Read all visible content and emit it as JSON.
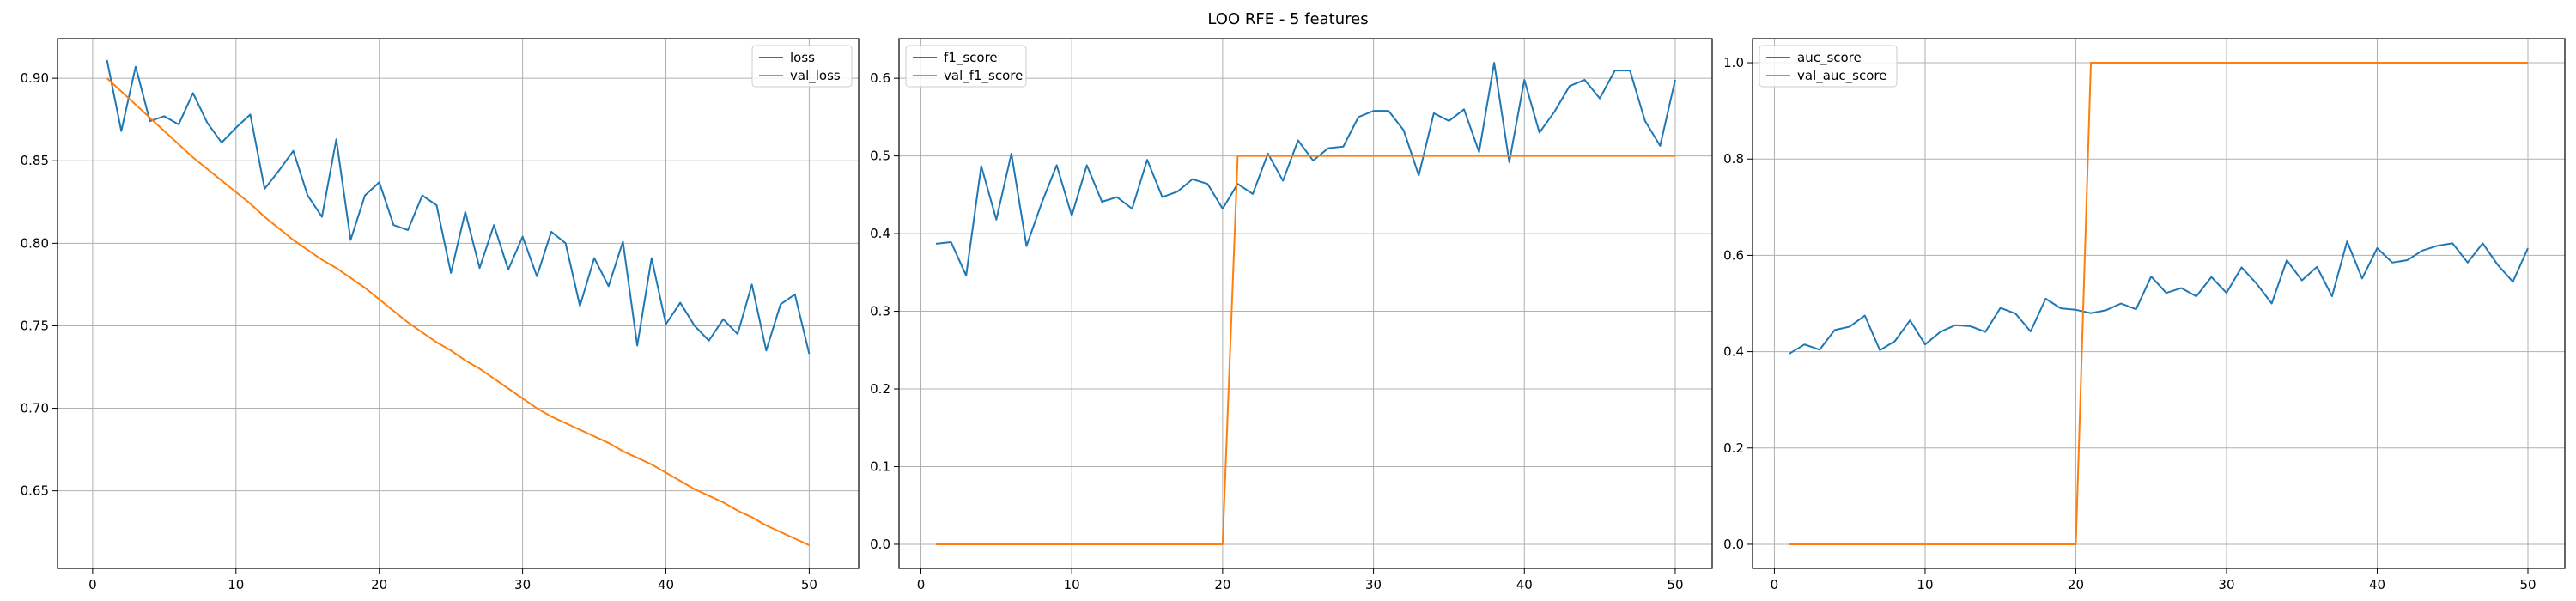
{
  "suptitle": "LOO RFE - 5 features",
  "colors": {
    "series1": "#1f77b4",
    "series2": "#ff7f0e",
    "grid": "#b0b0b0",
    "axes": "#000000"
  },
  "chart_data": [
    {
      "type": "line",
      "title": "",
      "xlabel": "",
      "ylabel": "",
      "grid": true,
      "legend_position": "top-right",
      "xlim": [
        -2.45,
        53.45
      ],
      "ylim": [
        0.603,
        0.924
      ],
      "xticks": [
        0,
        10,
        20,
        30,
        40,
        50
      ],
      "yticks": [
        0.65,
        0.7,
        0.75,
        0.8,
        0.85,
        0.9
      ],
      "ytick_labels": [
        "0.65",
        "0.70",
        "0.75",
        "0.80",
        "0.85",
        "0.90"
      ],
      "x": [
        1,
        2,
        3,
        4,
        5,
        6,
        7,
        8,
        9,
        10,
        11,
        12,
        13,
        14,
        15,
        16,
        17,
        18,
        19,
        20,
        21,
        22,
        23,
        24,
        25,
        26,
        27,
        28,
        29,
        30,
        31,
        32,
        33,
        34,
        35,
        36,
        37,
        38,
        39,
        40,
        41,
        42,
        43,
        44,
        45,
        46,
        47,
        48,
        49,
        50
      ],
      "series": [
        {
          "name": "loss",
          "values": [
            0.911,
            0.868,
            0.907,
            0.874,
            0.877,
            0.872,
            0.891,
            0.873,
            0.861,
            0.87,
            0.878,
            0.833,
            0.844,
            0.856,
            0.829,
            0.816,
            0.863,
            0.802,
            0.829,
            0.837,
            0.811,
            0.808,
            0.829,
            0.823,
            0.782,
            0.819,
            0.785,
            0.811,
            0.784,
            0.804,
            0.78,
            0.807,
            0.8,
            0.762,
            0.791,
            0.774,
            0.801,
            0.738,
            0.791,
            0.751,
            0.764,
            0.75,
            0.741,
            0.754,
            0.745,
            0.775,
            0.735,
            0.763,
            0.769,
            0.733
          ]
        },
        {
          "name": "val_loss",
          "values": [
            0.9,
            0.892,
            0.884,
            0.876,
            0.868,
            0.86,
            0.852,
            0.845,
            0.838,
            0.831,
            0.824,
            0.816,
            0.809,
            0.802,
            0.796,
            0.79,
            0.785,
            0.779,
            0.773,
            0.766,
            0.759,
            0.752,
            0.746,
            0.74,
            0.735,
            0.729,
            0.724,
            0.718,
            0.712,
            0.706,
            0.7,
            0.695,
            0.691,
            0.687,
            0.683,
            0.679,
            0.674,
            0.67,
            0.666,
            0.661,
            0.656,
            0.651,
            0.647,
            0.643,
            0.638,
            0.634,
            0.629,
            0.625,
            0.621,
            0.617
          ]
        }
      ]
    },
    {
      "type": "line",
      "title": "",
      "xlabel": "",
      "ylabel": "",
      "grid": true,
      "legend_position": "top-left",
      "xlim": [
        -1.45,
        52.45
      ],
      "ylim": [
        -0.031,
        0.651
      ],
      "xticks": [
        0,
        10,
        20,
        30,
        40,
        50
      ],
      "yticks": [
        0.0,
        0.1,
        0.2,
        0.3,
        0.4,
        0.5,
        0.6
      ],
      "ytick_labels": [
        "0.0",
        "0.1",
        "0.2",
        "0.3",
        "0.4",
        "0.5",
        "0.6"
      ],
      "x": [
        1,
        2,
        3,
        4,
        5,
        6,
        7,
        8,
        9,
        10,
        11,
        12,
        13,
        14,
        15,
        16,
        17,
        18,
        19,
        20,
        21,
        22,
        23,
        24,
        25,
        26,
        27,
        28,
        29,
        30,
        31,
        32,
        33,
        34,
        35,
        36,
        37,
        38,
        39,
        40,
        41,
        42,
        43,
        44,
        45,
        46,
        47,
        48,
        49,
        50
      ],
      "series": [
        {
          "name": "f1_score",
          "values": [
            0.387,
            0.389,
            0.346,
            0.487,
            0.418,
            0.503,
            0.384,
            0.439,
            0.488,
            0.423,
            0.488,
            0.441,
            0.447,
            0.432,
            0.495,
            0.447,
            0.454,
            0.47,
            0.464,
            0.432,
            0.464,
            0.451,
            0.503,
            0.468,
            0.52,
            0.494,
            0.51,
            0.512,
            0.55,
            0.558,
            0.558,
            0.533,
            0.475,
            0.555,
            0.545,
            0.56,
            0.505,
            0.62,
            0.492,
            0.598,
            0.53,
            0.557,
            0.59,
            0.598,
            0.574,
            0.61,
            0.61,
            0.545,
            0.513,
            0.598
          ]
        },
        {
          "name": "val_f1_score",
          "values": [
            0.0,
            0.0,
            0.0,
            0.0,
            0.0,
            0.0,
            0.0,
            0.0,
            0.0,
            0.0,
            0.0,
            0.0,
            0.0,
            0.0,
            0.0,
            0.0,
            0.0,
            0.0,
            0.0,
            0.0,
            0.5,
            0.5,
            0.5,
            0.5,
            0.5,
            0.5,
            0.5,
            0.5,
            0.5,
            0.5,
            0.5,
            0.5,
            0.5,
            0.5,
            0.5,
            0.5,
            0.5,
            0.5,
            0.5,
            0.5,
            0.5,
            0.5,
            0.5,
            0.5,
            0.5,
            0.5,
            0.5,
            0.5,
            0.5,
            0.5
          ]
        }
      ]
    },
    {
      "type": "line",
      "title": "",
      "xlabel": "",
      "ylabel": "",
      "grid": true,
      "legend_position": "top-left",
      "xlim": [
        -1.45,
        52.45
      ],
      "ylim": [
        -0.05,
        1.05
      ],
      "xticks": [
        0,
        10,
        20,
        30,
        40,
        50
      ],
      "yticks": [
        0.0,
        0.2,
        0.4,
        0.6,
        0.8,
        1.0
      ],
      "ytick_labels": [
        "0.0",
        "0.2",
        "0.4",
        "0.6",
        "0.8",
        "1.0"
      ],
      "x": [
        1,
        2,
        3,
        4,
        5,
        6,
        7,
        8,
        9,
        10,
        11,
        12,
        13,
        14,
        15,
        16,
        17,
        18,
        19,
        20,
        21,
        22,
        23,
        24,
        25,
        26,
        27,
        28,
        29,
        30,
        31,
        32,
        33,
        34,
        35,
        36,
        37,
        38,
        39,
        40,
        41,
        42,
        43,
        44,
        45,
        46,
        47,
        48,
        49,
        50
      ],
      "series": [
        {
          "name": "auc_score",
          "values": [
            0.396,
            0.415,
            0.404,
            0.445,
            0.452,
            0.475,
            0.403,
            0.422,
            0.465,
            0.415,
            0.441,
            0.455,
            0.453,
            0.441,
            0.491,
            0.479,
            0.442,
            0.51,
            0.49,
            0.487,
            0.48,
            0.486,
            0.5,
            0.488,
            0.556,
            0.522,
            0.532,
            0.515,
            0.555,
            0.522,
            0.575,
            0.541,
            0.5,
            0.59,
            0.548,
            0.576,
            0.515,
            0.629,
            0.552,
            0.615,
            0.585,
            0.59,
            0.61,
            0.62,
            0.625,
            0.585,
            0.625,
            0.58,
            0.545,
            0.615
          ]
        },
        {
          "name": "val_auc_score",
          "values": [
            0.0,
            0.0,
            0.0,
            0.0,
            0.0,
            0.0,
            0.0,
            0.0,
            0.0,
            0.0,
            0.0,
            0.0,
            0.0,
            0.0,
            0.0,
            0.0,
            0.0,
            0.0,
            0.0,
            0.0,
            1.0,
            1.0,
            1.0,
            1.0,
            1.0,
            1.0,
            1.0,
            1.0,
            1.0,
            1.0,
            1.0,
            1.0,
            1.0,
            1.0,
            1.0,
            1.0,
            1.0,
            1.0,
            1.0,
            1.0,
            1.0,
            1.0,
            1.0,
            1.0,
            1.0,
            1.0,
            1.0,
            1.0,
            1.0,
            1.0
          ]
        }
      ]
    }
  ]
}
